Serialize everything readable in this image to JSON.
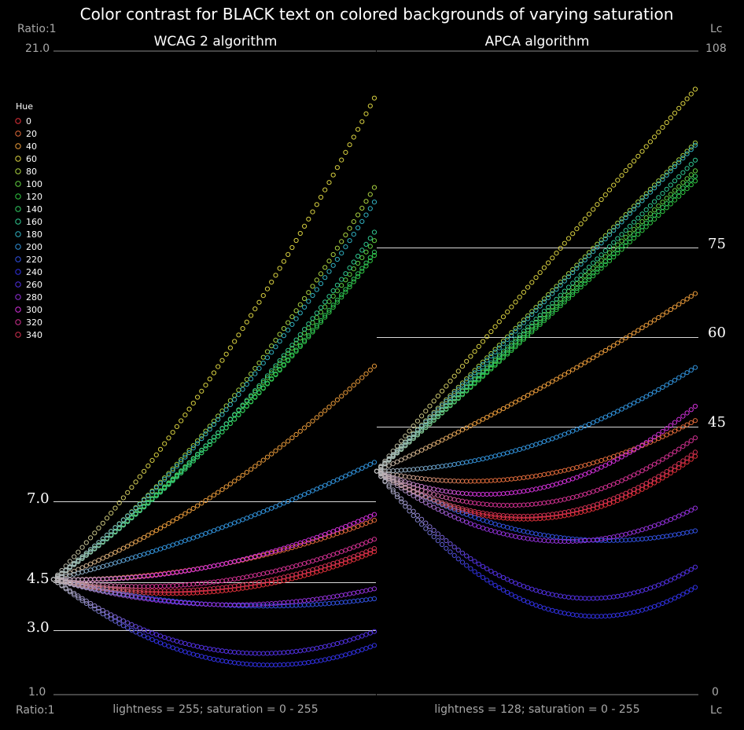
{
  "title": "Color contrast for BLACK text on colored backgrounds of varying saturation",
  "left_axis": {
    "top_label": "Ratio:1",
    "bottom_label": "Ratio:1",
    "max_tick": "21.0",
    "min_tick": "1.0"
  },
  "right_axis": {
    "top_label": "Lc",
    "bottom_label": "Lc",
    "max_tick": "108",
    "min_tick": "0"
  },
  "legend": {
    "title": "Hue"
  },
  "chart_data": [
    {
      "type": "scatter",
      "subtitle": "WCAG 2 algorithm",
      "xlabel": "lightness = 255; saturation = 0 - 255",
      "xlim": [
        0,
        255
      ],
      "ylim": [
        1.0,
        21.0
      ],
      "reference_lines": [
        {
          "value": 7.0,
          "label": "7.0"
        },
        {
          "value": 4.5,
          "label": "4.5"
        },
        {
          "value": 3.0,
          "label": "3.0"
        }
      ],
      "series": [
        {
          "name": "0",
          "color": "#e0303a",
          "start": 4.58,
          "mid": 4.2,
          "end": 5.44
        },
        {
          "name": "20",
          "color": "#e06a3a",
          "start": 4.58,
          "mid": 5.0,
          "end": 6.42
        },
        {
          "name": "40",
          "color": "#e89a3a",
          "start": 4.58,
          "mid": 7.2,
          "end": 11.21
        },
        {
          "name": "60",
          "color": "#d8d040",
          "start": 4.58,
          "mid": 11.0,
          "end": 19.54
        },
        {
          "name": "80",
          "color": "#a8d040",
          "start": 4.58,
          "mid": 9.5,
          "end": 16.76
        },
        {
          "name": "100",
          "color": "#60d040",
          "start": 4.58,
          "mid": 9.0,
          "end": 15.11
        },
        {
          "name": "120",
          "color": "#30c840",
          "start": 4.58,
          "mid": 8.9,
          "end": 14.65
        },
        {
          "name": "140",
          "color": "#30c860",
          "start": 4.58,
          "mid": 8.9,
          "end": 14.75
        },
        {
          "name": "160",
          "color": "#30c890",
          "start": 4.58,
          "mid": 9.0,
          "end": 15.37
        },
        {
          "name": "180",
          "color": "#30b0c0",
          "start": 4.58,
          "mid": 9.4,
          "end": 16.31
        },
        {
          "name": "200",
          "color": "#3090d8",
          "start": 4.58,
          "mid": 6.1,
          "end": 8.22
        },
        {
          "name": "220",
          "color": "#3050e0",
          "start": 4.58,
          "mid": 3.8,
          "end": 3.98
        },
        {
          "name": "240",
          "color": "#3030e0",
          "start": 4.58,
          "mid": 2.1,
          "end": 2.53
        },
        {
          "name": "260",
          "color": "#5030e0",
          "start": 4.58,
          "mid": 2.4,
          "end": 2.96
        },
        {
          "name": "280",
          "color": "#9030d8",
          "start": 4.58,
          "mid": 3.8,
          "end": 4.29
        },
        {
          "name": "300",
          "color": "#d030d8",
          "start": 4.58,
          "mid": 5.0,
          "end": 6.6
        },
        {
          "name": "320",
          "color": "#d03090",
          "start": 4.58,
          "mid": 4.5,
          "end": 5.83
        },
        {
          "name": "340",
          "color": "#d03050",
          "start": 4.58,
          "mid": 4.3,
          "end": 5.54
        }
      ]
    },
    {
      "type": "scatter",
      "subtitle": "APCA algorithm",
      "xlabel": "lightness = 128; saturation = 0 - 255",
      "xlim": [
        0,
        255
      ],
      "ylim": [
        0,
        108
      ],
      "reference_lines": [
        {
          "value": 75,
          "label": "75"
        },
        {
          "value": 60,
          "label": "60"
        },
        {
          "value": 45,
          "label": "45"
        }
      ],
      "series": [
        {
          "name": "0",
          "color": "#e0303a",
          "start": 37.5,
          "mid": 29.5,
          "end": 40.0
        },
        {
          "name": "20",
          "color": "#e06a3a",
          "start": 37.5,
          "mid": 36.7,
          "end": 46.0
        },
        {
          "name": "40",
          "color": "#e89a3a",
          "start": 37.5,
          "mid": 51.0,
          "end": 67.3
        },
        {
          "name": "60",
          "color": "#d8d040",
          "start": 37.5,
          "mid": 70.0,
          "end": 101.6
        },
        {
          "name": "80",
          "color": "#a8d040",
          "start": 37.5,
          "mid": 65.0,
          "end": 92.6
        },
        {
          "name": "100",
          "color": "#60d040",
          "start": 37.5,
          "mid": 62.5,
          "end": 87.9
        },
        {
          "name": "120",
          "color": "#30c840",
          "start": 37.5,
          "mid": 61.5,
          "end": 86.2
        },
        {
          "name": "140",
          "color": "#30c860",
          "start": 37.5,
          "mid": 61.8,
          "end": 87.0
        },
        {
          "name": "160",
          "color": "#30c890",
          "start": 37.5,
          "mid": 63.0,
          "end": 89.7
        },
        {
          "name": "180",
          "color": "#30b0c0",
          "start": 37.5,
          "mid": 64.5,
          "end": 92.2
        },
        {
          "name": "200",
          "color": "#3090d8",
          "start": 37.5,
          "mid": 42.0,
          "end": 54.9
        },
        {
          "name": "220",
          "color": "#3050e0",
          "start": 37.5,
          "mid": 27.0,
          "end": 27.5
        },
        {
          "name": "240",
          "color": "#3030e0",
          "start": 37.5,
          "mid": 15.0,
          "end": 18.0
        },
        {
          "name": "260",
          "color": "#5030e0",
          "start": 37.5,
          "mid": 17.5,
          "end": 21.4
        },
        {
          "name": "280",
          "color": "#9030d8",
          "start": 37.5,
          "mid": 26.0,
          "end": 31.3
        },
        {
          "name": "300",
          "color": "#d030d8",
          "start": 37.5,
          "mid": 34.5,
          "end": 48.4
        },
        {
          "name": "320",
          "color": "#d03090",
          "start": 37.5,
          "mid": 32.0,
          "end": 43.1
        },
        {
          "name": "340",
          "color": "#d03050",
          "start": 37.5,
          "mid": 30.0,
          "end": 40.7
        }
      ]
    }
  ]
}
